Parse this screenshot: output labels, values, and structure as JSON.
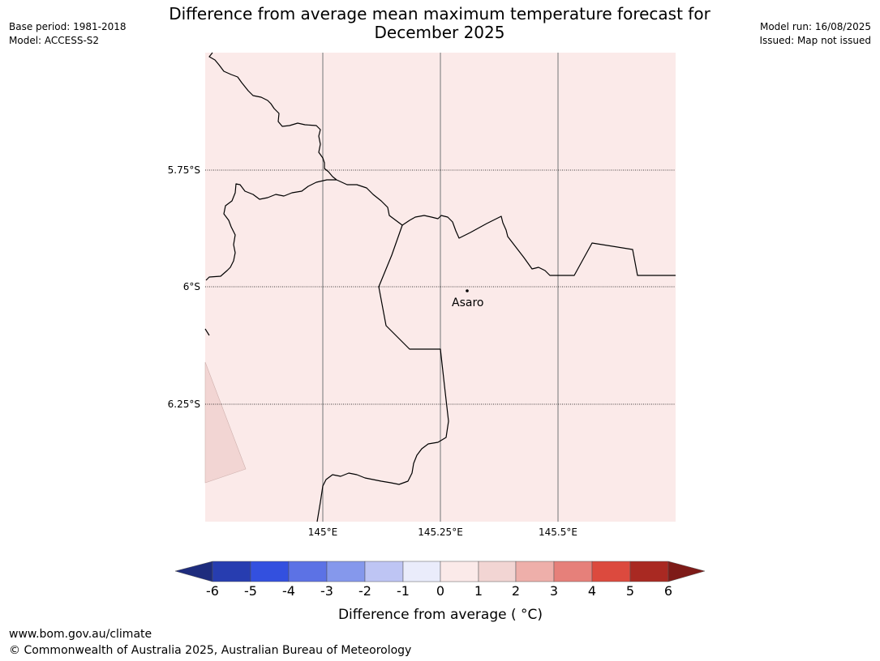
{
  "title_line1": "Difference from average mean maximum temperature forecast for",
  "title_line2": "December 2025",
  "base_period": "Base period: 1981-2018",
  "model": "Model: ACCESS-S2",
  "model_run": "Model run: 16/08/2025",
  "issued": "Issued: Map not issued",
  "map": {
    "lat_labels": [
      "5.75°S",
      "6°S",
      "6.25°S"
    ],
    "lon_labels": [
      "145°E",
      "145.25°E",
      "145.5°E"
    ],
    "place_name": "Asaro",
    "fill_color": "#fbeae9",
    "light_color": "#f2d5d3"
  },
  "colorbar": {
    "title": "Difference from average ( °C)",
    "tick_labels": [
      "-6",
      "-5",
      "-4",
      "-3",
      "-2",
      "-1",
      "0",
      "1",
      "2",
      "3",
      "4",
      "5",
      "6"
    ],
    "colors": [
      "#1e2c7d",
      "#273db0",
      "#3350df",
      "#5c72e5",
      "#8598ec",
      "#bec5f4",
      "#eaecfb",
      "#fbeae9",
      "#f2d5d3",
      "#eeafaa",
      "#e6807a",
      "#dc4a3e",
      "#a92922",
      "#7e1b18"
    ]
  },
  "footer_url": "www.bom.gov.au/climate",
  "footer_copyright": "© Commonwealth of Australia 2025, Australian Bureau of Meteorology"
}
